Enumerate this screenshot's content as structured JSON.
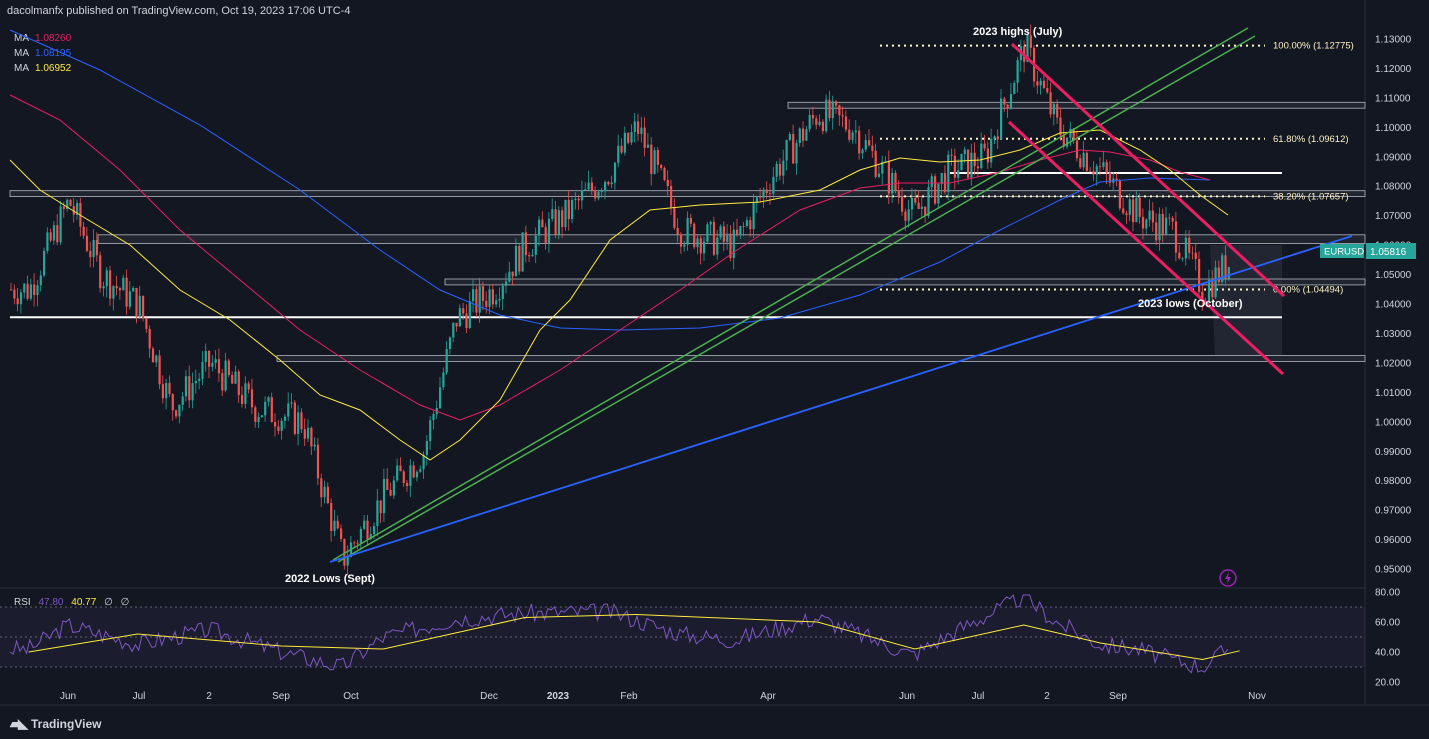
{
  "header": {
    "publisher": "dacolmanfx published on TradingView.com, Oct 19, 2023 17:06 UTC-4"
  },
  "ma_legend": [
    {
      "label": "MA",
      "value": "1.08260",
      "color": "#e91e63"
    },
    {
      "label": "MA",
      "value": "1.08195",
      "color": "#2962ff"
    },
    {
      "label": "MA",
      "value": "1.06952",
      "color": "#ffeb3b"
    }
  ],
  "rsi_legend": {
    "label": "RSI",
    "value": "47.80",
    "ma_value": "40.77",
    "extra1": "∅",
    "extra2": "∅"
  },
  "symbol_tag": {
    "symbol": "EURUSD",
    "price": "1.05816"
  },
  "annotations": {
    "highs": "2023 highs (July)",
    "lows_2023": "2023 lows (October)",
    "lows_2022": "2022 Lows (Sept)"
  },
  "footer": {
    "brand": "TradingView"
  },
  "colors": {
    "background": "#131722",
    "bull": "#26a69a",
    "bear": "#ef5350",
    "ma_red": "#e91e63",
    "ma_blue": "#2962ff",
    "ma_yellow": "#ffeb3b",
    "channel": "#e91e63",
    "support_trend": "#2962ff",
    "green_trend": "#4caf50",
    "rsi_line": "#7e57c2",
    "rsi_ma": "#ffeb3b",
    "tag": "#26a69a"
  },
  "chart_data": [
    {
      "type": "line",
      "name": "price",
      "ylim": [
        0.945,
        1.135
      ],
      "y_ticks": [
        "1.13000",
        "1.12000",
        "1.11000",
        "1.10000",
        "1.09000",
        "1.08000",
        "1.07000",
        "1.06000",
        "1.05000",
        "1.04000",
        "1.03000",
        "1.02000",
        "1.01000",
        "1.00000",
        "0.99000",
        "0.98000",
        "0.97000",
        "0.96000",
        "0.95000"
      ],
      "x_ticks": [
        "Jun",
        "Jul",
        "2",
        "Sep",
        "Oct",
        "Dec",
        "2023",
        "Feb",
        "Apr",
        "Jun",
        "Jul",
        "2",
        "Sep",
        "Nov"
      ],
      "series": [
        {
          "name": "EURUSD",
          "x": [
            "2022-05-15",
            "2022-06-01",
            "2022-06-15",
            "2022-07-01",
            "2022-07-15",
            "2022-08-01",
            "2022-08-20",
            "2022-09-10",
            "2022-09-27",
            "2022-10-15",
            "2022-11-01",
            "2022-11-15",
            "2022-12-01",
            "2022-12-15",
            "2023-01-01",
            "2023-01-20",
            "2023-02-01",
            "2023-02-20",
            "2023-03-15",
            "2023-04-01",
            "2023-04-20",
            "2023-05-05",
            "2023-05-31",
            "2023-06-15",
            "2023-07-01",
            "2023-07-18",
            "2023-08-01",
            "2023-08-20",
            "2023-09-05",
            "2023-09-20",
            "2023-10-03",
            "2023-10-19"
          ],
          "y": [
            1.045,
            1.075,
            1.05,
            1.04,
            1.005,
            1.02,
            1.005,
            1.0,
            0.9535,
            0.975,
            0.99,
            1.035,
            1.045,
            1.06,
            1.07,
            1.085,
            1.1,
            1.065,
            1.06,
            1.085,
            1.105,
            1.1,
            1.07,
            1.085,
            1.09,
            1.1277,
            1.1,
            1.085,
            1.07,
            1.065,
            1.0449,
            1.0582
          ]
        },
        {
          "name": "MA",
          "value": 1.0826
        },
        {
          "name": "MA",
          "value": 1.08195
        },
        {
          "name": "MA",
          "value": 1.06952
        }
      ],
      "levels": [
        {
          "label": "100.00% (1.12775)",
          "value": 1.12775,
          "style": "dotted"
        },
        {
          "label": "61.80% (1.09612)",
          "value": 1.09612,
          "style": "dotted"
        },
        {
          "label": "38.20% (1.07657)",
          "value": 1.07657,
          "style": "dotted"
        },
        {
          "label": "0.00% (1.04494)",
          "value": 1.04494,
          "style": "dotted"
        },
        {
          "value": 1.0355,
          "style": "solid"
        },
        {
          "value": 1.0845,
          "style": "solid"
        }
      ],
      "zones": [
        {
          "from": 1.1065,
          "to": 1.1085
        },
        {
          "from": 1.0765,
          "to": 1.0785
        },
        {
          "from": 1.0605,
          "to": 1.0635
        },
        {
          "from": 1.0465,
          "to": 1.0485
        },
        {
          "from": 1.0205,
          "to": 1.0225
        }
      ]
    },
    {
      "type": "line",
      "name": "RSI",
      "ylim": [
        20,
        80
      ],
      "y_ticks": [
        "80.00",
        "60.00",
        "40.00",
        "20.00"
      ],
      "series": [
        {
          "name": "RSI",
          "x": [
            "2022-05-15",
            "2022-06-01",
            "2022-07-01",
            "2022-08-01",
            "2022-09-01",
            "2022-09-27",
            "2022-10-15",
            "2022-11-15",
            "2022-12-15",
            "2023-01-20",
            "2023-02-20",
            "2023-03-15",
            "2023-04-20",
            "2023-05-31",
            "2023-06-20",
            "2023-07-18",
            "2023-08-01",
            "2023-08-20",
            "2023-09-05",
            "2023-09-20",
            "2023-10-03",
            "2023-10-19"
          ],
          "y": [
            42,
            58,
            45,
            55,
            40,
            30,
            50,
            62,
            66,
            67,
            52,
            48,
            63,
            38,
            55,
            77,
            60,
            45,
            42,
            35,
            30,
            47.8
          ]
        },
        {
          "name": "RSI MA",
          "x": [
            "2022-05-15",
            "2022-07-01",
            "2022-09-01",
            "2022-10-15",
            "2022-12-15",
            "2023-02-01",
            "2023-04-20",
            "2023-06-01",
            "2023-07-18",
            "2023-08-20",
            "2023-10-03",
            "2023-10-19"
          ],
          "y": [
            40,
            52,
            44,
            42,
            63,
            65,
            60,
            42,
            58,
            46,
            35,
            40.77
          ]
        }
      ]
    }
  ]
}
